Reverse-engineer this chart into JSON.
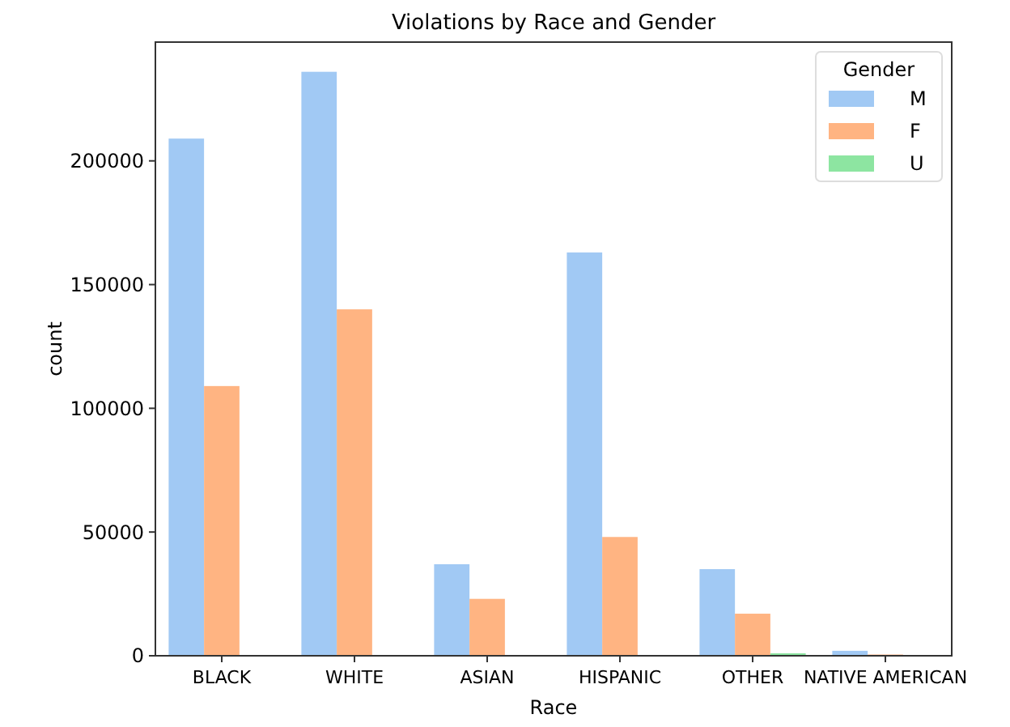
{
  "chart_data": {
    "type": "bar",
    "title": "Violations by Race and Gender",
    "xlabel": "Race",
    "ylabel": "count",
    "legend_title": "Gender",
    "legend": "top right",
    "grid": false,
    "categories": [
      "BLACK",
      "WHITE",
      "ASIAN",
      "HISPANIC",
      "OTHER",
      "NATIVE AMERICAN"
    ],
    "ylim": [
      0,
      248000
    ],
    "yticks": [
      0,
      50000,
      100000,
      150000,
      200000
    ],
    "series": [
      {
        "name": "M",
        "color": "#a1c9f4",
        "values": [
          209000,
          236000,
          37000,
          163000,
          35000,
          2000
        ]
      },
      {
        "name": "F",
        "color": "#ffb482",
        "values": [
          109000,
          140000,
          23000,
          48000,
          17000,
          500
        ]
      },
      {
        "name": "U",
        "color": "#8de5a1",
        "values": [
          null,
          null,
          null,
          null,
          1000,
          null
        ]
      }
    ]
  }
}
